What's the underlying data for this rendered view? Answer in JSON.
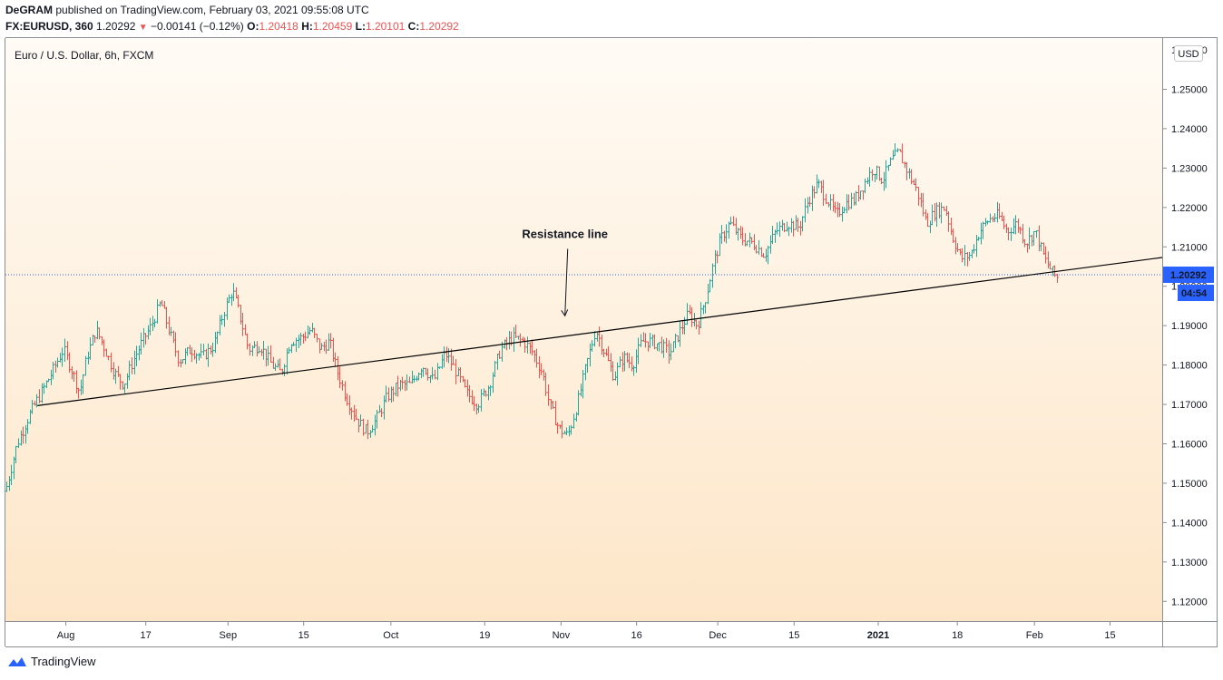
{
  "header": {
    "publisher": "DeGRAM",
    "published_text": "published on TradingView.com, February 03, 2021 09:55:08 UTC",
    "symbol": "FX:EURUSD, 360",
    "last": "1.20292",
    "change": "−0.00141 (−0.12%)",
    "o_label": "O:",
    "o_value": "1.20418",
    "h_label": "H:",
    "h_value": "1.20459",
    "l_label": "L:",
    "l_value": "1.20101",
    "c_label": "C:",
    "c_value": "1.20292"
  },
  "currency_button": "USD",
  "footer": {
    "brand": "TradingView"
  },
  "colors": {
    "up": "#26a69a",
    "down": "#ef5350",
    "line": "#000000",
    "price_label_bg": "#2962ff",
    "bg_top": "#fffbf5",
    "bg_bottom": "#fde6c8"
  },
  "chart_data": {
    "type": "bar",
    "title": "Euro / U.S. Dollar, 6h, FXCM",
    "ylim": [
      1.115,
      1.263
    ],
    "y_ticks": [
      1.12,
      1.13,
      1.14,
      1.15,
      1.16,
      1.17,
      1.18,
      1.19,
      1.2,
      1.21,
      1.22,
      1.23,
      1.24,
      1.25
    ],
    "y_tick_labels": [
      "1.12000",
      "1.13000",
      "1.14000",
      "1.15000",
      "1.16000",
      "1.17000",
      "1.18000",
      "1.19000",
      "1.20000",
      "1.21000",
      "1.22000",
      "1.23000",
      "1.24000",
      "1.25000"
    ],
    "top_tick_label": "1.26000",
    "x_labels": [
      {
        "label": "Aug",
        "x": 0.0522
      },
      {
        "label": "17",
        "x": 0.1213
      },
      {
        "label": "Sep",
        "x": 0.1924
      },
      {
        "label": "15",
        "x": 0.2578
      },
      {
        "label": "Oct",
        "x": 0.3332
      },
      {
        "label": "19",
        "x": 0.4143
      },
      {
        "label": "Nov",
        "x": 0.4803
      },
      {
        "label": "16",
        "x": 0.5456
      },
      {
        "label": "Dec",
        "x": 0.6158
      },
      {
        "label": "15",
        "x": 0.6818
      },
      {
        "label": "2021",
        "x": 0.7545,
        "bold": true
      },
      {
        "label": "18",
        "x": 0.8229
      },
      {
        "label": "Feb",
        "x": 0.8896
      },
      {
        "label": "15",
        "x": 0.9549
      }
    ],
    "price_path": [
      [
        0.0,
        1.148
      ],
      [
        0.01,
        1.16
      ],
      [
        0.02,
        1.167
      ],
      [
        0.027,
        1.171
      ],
      [
        0.038,
        1.177
      ],
      [
        0.05,
        1.184
      ],
      [
        0.058,
        1.178
      ],
      [
        0.064,
        1.173
      ],
      [
        0.07,
        1.182
      ],
      [
        0.078,
        1.189
      ],
      [
        0.086,
        1.184
      ],
      [
        0.094,
        1.178
      ],
      [
        0.102,
        1.175
      ],
      [
        0.11,
        1.181
      ],
      [
        0.118,
        1.186
      ],
      [
        0.126,
        1.19
      ],
      [
        0.134,
        1.196
      ],
      [
        0.142,
        1.188
      ],
      [
        0.15,
        1.181
      ],
      [
        0.16,
        1.184
      ],
      [
        0.17,
        1.182
      ],
      [
        0.18,
        1.185
      ],
      [
        0.188,
        1.193
      ],
      [
        0.196,
        1.199
      ],
      [
        0.202,
        1.193
      ],
      [
        0.21,
        1.184
      ],
      [
        0.22,
        1.185
      ],
      [
        0.23,
        1.18
      ],
      [
        0.238,
        1.178
      ],
      [
        0.246,
        1.186
      ],
      [
        0.256,
        1.187
      ],
      [
        0.264,
        1.189
      ],
      [
        0.272,
        1.184
      ],
      [
        0.28,
        1.186
      ],
      [
        0.286,
        1.179
      ],
      [
        0.294,
        1.172
      ],
      [
        0.304,
        1.166
      ],
      [
        0.312,
        1.163
      ],
      [
        0.32,
        1.166
      ],
      [
        0.33,
        1.172
      ],
      [
        0.34,
        1.175
      ],
      [
        0.35,
        1.175
      ],
      [
        0.36,
        1.18
      ],
      [
        0.37,
        1.176
      ],
      [
        0.38,
        1.183
      ],
      [
        0.39,
        1.178
      ],
      [
        0.398,
        1.173
      ],
      [
        0.408,
        1.17
      ],
      [
        0.418,
        1.175
      ],
      [
        0.428,
        1.184
      ],
      [
        0.438,
        1.187
      ],
      [
        0.448,
        1.186
      ],
      [
        0.456,
        1.183
      ],
      [
        0.464,
        1.178
      ],
      [
        0.47,
        1.17
      ],
      [
        0.478,
        1.164
      ],
      [
        0.486,
        1.162
      ],
      [
        0.494,
        1.17
      ],
      [
        0.502,
        1.18
      ],
      [
        0.51,
        1.189
      ],
      [
        0.518,
        1.183
      ],
      [
        0.526,
        1.177
      ],
      [
        0.534,
        1.182
      ],
      [
        0.542,
        1.18
      ],
      [
        0.55,
        1.186
      ],
      [
        0.558,
        1.186
      ],
      [
        0.566,
        1.185
      ],
      [
        0.574,
        1.183
      ],
      [
        0.582,
        1.188
      ],
      [
        0.59,
        1.193
      ],
      [
        0.598,
        1.19
      ],
      [
        0.606,
        1.198
      ],
      [
        0.612,
        1.206
      ],
      [
        0.618,
        1.212
      ],
      [
        0.626,
        1.216
      ],
      [
        0.636,
        1.212
      ],
      [
        0.646,
        1.211
      ],
      [
        0.656,
        1.208
      ],
      [
        0.666,
        1.214
      ],
      [
        0.676,
        1.216
      ],
      [
        0.686,
        1.215
      ],
      [
        0.694,
        1.222
      ],
      [
        0.702,
        1.226
      ],
      [
        0.71,
        1.222
      ],
      [
        0.718,
        1.218
      ],
      [
        0.726,
        1.221
      ],
      [
        0.734,
        1.222
      ],
      [
        0.742,
        1.226
      ],
      [
        0.75,
        1.23
      ],
      [
        0.758,
        1.227
      ],
      [
        0.766,
        1.232
      ],
      [
        0.772,
        1.234
      ],
      [
        0.78,
        1.229
      ],
      [
        0.788,
        1.224
      ],
      [
        0.796,
        1.216
      ],
      [
        0.804,
        1.219
      ],
      [
        0.812,
        1.22
      ],
      [
        0.818,
        1.213
      ],
      [
        0.826,
        1.207
      ],
      [
        0.834,
        1.208
      ],
      [
        0.842,
        1.214
      ],
      [
        0.85,
        1.217
      ],
      [
        0.858,
        1.218
      ],
      [
        0.866,
        1.214
      ],
      [
        0.874,
        1.216
      ],
      [
        0.882,
        1.211
      ],
      [
        0.89,
        1.214
      ],
      [
        0.898,
        1.207
      ],
      [
        0.906,
        1.203
      ],
      [
        0.91,
        1.202
      ]
    ],
    "resistance_line": {
      "x0": 0.0276,
      "y0": 1.1697,
      "x1": 1.0,
      "y1": 1.2073
    },
    "current_price": {
      "value": 1.20292,
      "label": "1.20292",
      "countdown": "04:54"
    },
    "annotation": {
      "text": "Resistance line",
      "arrow_x": 0.4837,
      "arrow_from": 1.2095,
      "arrow_to": 1.1925
    }
  }
}
